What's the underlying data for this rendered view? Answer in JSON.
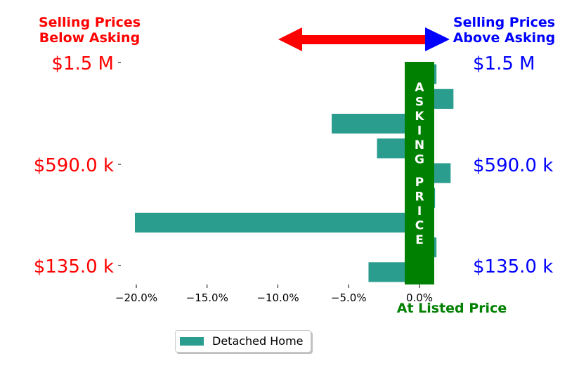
{
  "header": {
    "left_line1": "Selling Prices",
    "left_line2": "Below Asking",
    "right_line1": "Selling Prices",
    "right_line2": "Above Asking"
  },
  "colors": {
    "below": "#ff0000",
    "above": "#0000ff",
    "bar": "#2a9d8f",
    "band": "#008000"
  },
  "chart_data": {
    "type": "bar",
    "orientation": "horizontal",
    "series": [
      {
        "name": "Detached Home",
        "values": [
          1.2,
          2.4,
          -6.2,
          -3.0,
          2.2,
          1.1,
          -20.1,
          1.2,
          -3.6
        ]
      }
    ],
    "xlim": [
      -21.5,
      1.5
    ],
    "x_ticks": [
      -20,
      -15,
      -10,
      -5,
      0
    ],
    "x_tick_labels": [
      "−20.0%",
      "−15.0%",
      "−10.0%",
      "−5.0%",
      "0.0%"
    ],
    "y_ticks_left": [
      "$1.5 M",
      "$590.0 k",
      "$135.0 k"
    ],
    "y_ticks_right": [
      "$1.5 M",
      "$590.0 k",
      "$135.0 k"
    ],
    "band_text": "ASKING PRICE",
    "band_label": "At Listed Price",
    "legend": [
      "Detached Home"
    ],
    "grid": false
  }
}
